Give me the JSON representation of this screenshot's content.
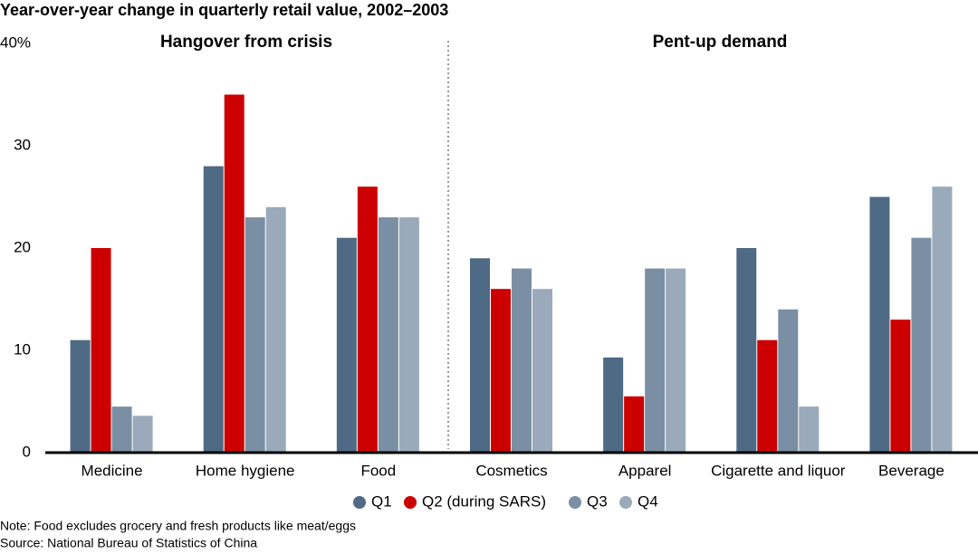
{
  "chart_data": {
    "type": "bar",
    "title": "Year-over-year change in quarterly retail value, 2002–2003",
    "annotations": [
      "Hangover from crisis",
      "Pent-up demand"
    ],
    "notes": [
      "Note: Food excludes grocery and fresh products like meat/eggs",
      "Source: National Bureau of Statistics of China"
    ],
    "categories": [
      "Medicine",
      "Home hygiene",
      "Food",
      "Cosmetics",
      "Apparel",
      "Cigarette and liquor",
      "Beverage"
    ],
    "series": [
      {
        "name": "Q1",
        "color": "#4f6a84",
        "values": [
          11,
          28,
          21,
          19,
          9.3,
          20,
          25
        ]
      },
      {
        "name": "Q2 (during SARS)",
        "color": "#cc0000",
        "values": [
          20,
          35,
          26,
          16,
          5.5,
          11,
          13
        ]
      },
      {
        "name": "Q3",
        "color": "#7a8fa3",
        "values": [
          4.5,
          23,
          23,
          18,
          18,
          14,
          21
        ]
      },
      {
        "name": "Q4",
        "color": "#9aaabb",
        "values": [
          3.6,
          24,
          23,
          16,
          18,
          4.5,
          26
        ]
      }
    ],
    "ylim": [
      0,
      40
    ],
    "yticks": [
      0,
      10,
      20,
      30,
      {
        "value": 40,
        "label": "40%"
      }
    ],
    "grid": false
  }
}
